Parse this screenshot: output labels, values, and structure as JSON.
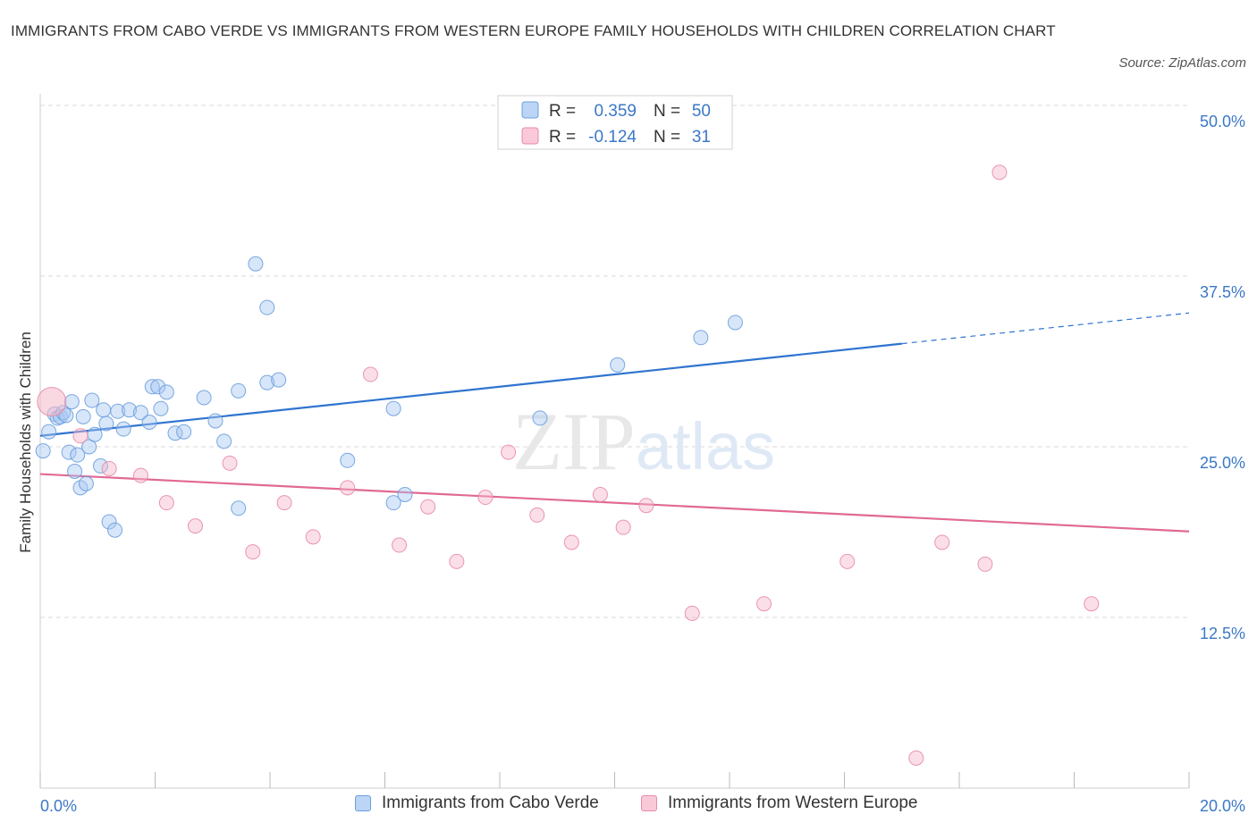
{
  "title": "IMMIGRANTS FROM CABO VERDE VS IMMIGRANTS FROM WESTERN EUROPE FAMILY HOUSEHOLDS WITH CHILDREN CORRELATION CHART",
  "source": "Source: ZipAtlas.com",
  "colors": {
    "blue_fill": "#a9c8f2",
    "blue_stroke": "#6a9fdf",
    "blue_line": "#2f74d0",
    "pink_fill": "#f6b8cb",
    "pink_stroke": "#e88aa8",
    "pink_line": "#e06a93",
    "axis_text": "#3b78c7",
    "grid": "#d9d9d9"
  },
  "legend": {
    "rows": [
      {
        "r_label": "R =",
        "r_value": "0.359",
        "n_label": "N =",
        "n_value": "50"
      },
      {
        "r_label": "R =",
        "r_value": "-0.124",
        "n_label": "N =",
        "n_value": "31"
      }
    ]
  },
  "bottom_legend": [
    "Immigrants from Cabo Verde",
    "Immigrants from Western Europe"
  ],
  "chart_data": {
    "type": "scatter",
    "ylabel": "Family Households with Children",
    "xlim": [
      0,
      20
    ],
    "ylim": [
      0,
      50
    ],
    "x_tick_labels": [
      "0.0%",
      "20.0%"
    ],
    "y_ticks": [
      {
        "value": 12.5,
        "label": "12.5%"
      },
      {
        "value": 25,
        "label": "25.0%"
      },
      {
        "value": 37.5,
        "label": "37.5%"
      },
      {
        "value": 50,
        "label": "50.0%"
      }
    ],
    "watermark": "ZIPatlas",
    "series": [
      {
        "name": "Immigrants from Cabo Verde",
        "color": "blue",
        "points": [
          [
            0.05,
            24.7
          ],
          [
            0.15,
            26.1
          ],
          [
            0.25,
            27.4
          ],
          [
            0.3,
            27.1
          ],
          [
            0.35,
            27.2
          ],
          [
            0.4,
            27.5
          ],
          [
            0.45,
            27.3
          ],
          [
            0.5,
            24.6
          ],
          [
            0.55,
            28.3
          ],
          [
            0.6,
            23.2
          ],
          [
            0.65,
            24.4
          ],
          [
            0.7,
            22.0
          ],
          [
            0.75,
            27.2
          ],
          [
            0.8,
            22.3
          ],
          [
            0.85,
            25.0
          ],
          [
            0.9,
            28.4
          ],
          [
            0.95,
            25.9
          ],
          [
            1.05,
            23.6
          ],
          [
            1.1,
            27.7
          ],
          [
            1.15,
            26.7
          ],
          [
            1.2,
            19.5
          ],
          [
            1.3,
            18.9
          ],
          [
            1.35,
            27.6
          ],
          [
            1.45,
            26.3
          ],
          [
            1.55,
            27.7
          ],
          [
            1.75,
            27.5
          ],
          [
            1.9,
            26.8
          ],
          [
            1.95,
            29.4
          ],
          [
            2.05,
            29.4
          ],
          [
            2.1,
            27.8
          ],
          [
            2.2,
            29.0
          ],
          [
            2.35,
            26.0
          ],
          [
            2.5,
            26.1
          ],
          [
            2.85,
            28.6
          ],
          [
            3.05,
            26.9
          ],
          [
            3.2,
            25.4
          ],
          [
            3.45,
            20.5
          ],
          [
            3.45,
            29.1
          ],
          [
            3.75,
            38.4
          ],
          [
            3.95,
            35.2
          ],
          [
            3.95,
            29.7
          ],
          [
            4.15,
            29.9
          ],
          [
            5.35,
            24.0
          ],
          [
            6.15,
            20.9
          ],
          [
            6.15,
            27.8
          ],
          [
            6.35,
            21.5
          ],
          [
            8.7,
            27.1
          ],
          [
            10.05,
            31.0
          ],
          [
            11.5,
            33.0
          ],
          [
            12.1,
            34.1
          ]
        ]
      },
      {
        "name": "Immigrants from Western Europe",
        "color": "pink",
        "points": [
          [
            0.2,
            28.3
          ],
          [
            0.7,
            25.8
          ],
          [
            1.2,
            23.4
          ],
          [
            1.75,
            22.9
          ],
          [
            2.2,
            20.9
          ],
          [
            2.7,
            19.2
          ],
          [
            3.3,
            23.8
          ],
          [
            3.7,
            17.3
          ],
          [
            4.25,
            20.9
          ],
          [
            4.75,
            18.4
          ],
          [
            5.35,
            22.0
          ],
          [
            5.75,
            30.3
          ],
          [
            6.25,
            17.8
          ],
          [
            6.75,
            20.6
          ],
          [
            7.25,
            16.6
          ],
          [
            7.75,
            21.3
          ],
          [
            8.15,
            24.6
          ],
          [
            8.65,
            20.0
          ],
          [
            9.25,
            18.0
          ],
          [
            9.75,
            21.5
          ],
          [
            10.15,
            19.1
          ],
          [
            10.55,
            20.7
          ],
          [
            11.35,
            12.8
          ],
          [
            11.8,
            50.1
          ],
          [
            12.6,
            13.5
          ],
          [
            14.05,
            16.6
          ],
          [
            15.25,
            2.2
          ],
          [
            15.7,
            18.0
          ],
          [
            16.7,
            45.1
          ],
          [
            16.45,
            16.4
          ],
          [
            18.3,
            13.5
          ]
        ]
      }
    ],
    "trend_lines": [
      {
        "series": "Immigrants from Cabo Verde",
        "x": [
          0,
          20
        ],
        "y": [
          25.8,
          34.8
        ],
        "solid_until_x": 15.0
      },
      {
        "series": "Immigrants from Western Europe",
        "x": [
          0,
          20
        ],
        "y": [
          23.0,
          18.8
        ]
      }
    ]
  }
}
